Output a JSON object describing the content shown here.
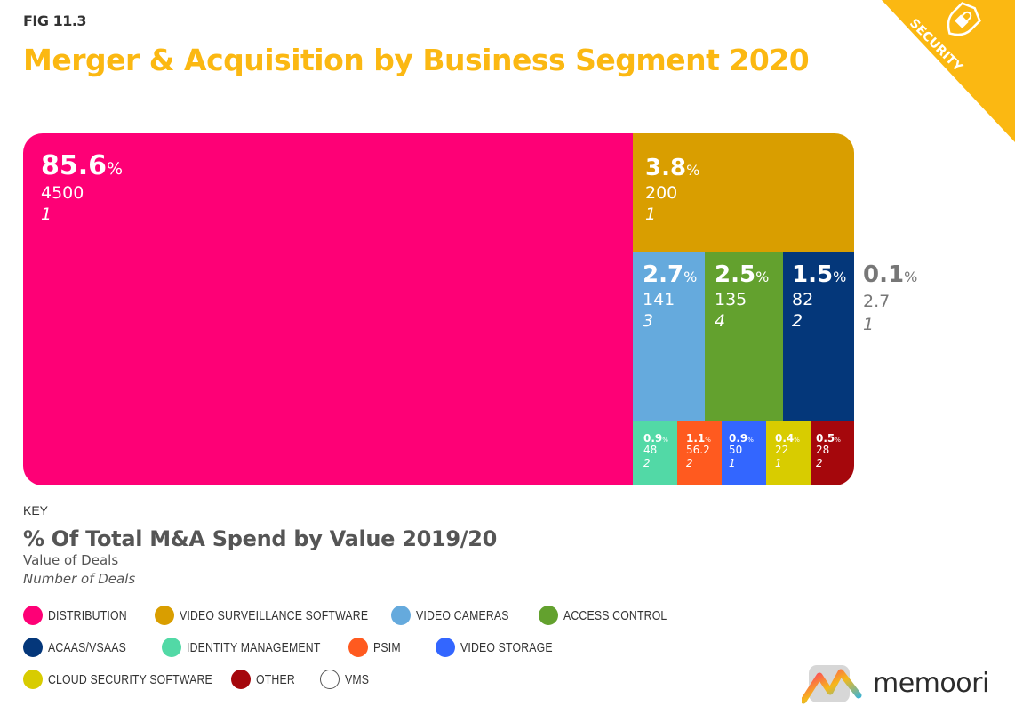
{
  "header": {
    "fig_label": "FIG 11.3",
    "title": "Merger & Acquisition by Business Segment 2020",
    "corner_badge": "SECURITY"
  },
  "colors": {
    "title": "#fbb812",
    "badge": "#fbb812"
  },
  "chart_data": {
    "type": "treemap",
    "title": "Merger & Acquisition by Business Segment 2020",
    "value_meaning": "% Of Total M&A Spend by Value 2019/20",
    "segments": [
      {
        "key": "distribution",
        "name": "DISTRIBUTION",
        "pct": "85.6",
        "value": "4500",
        "deals": "1",
        "color": "#fe0076"
      },
      {
        "key": "vss",
        "name": "VIDEO SURVEILLANCE SOFTWARE",
        "pct": "3.8",
        "value": "200",
        "deals": "1",
        "color": "#d99e00"
      },
      {
        "key": "cameras",
        "name": "VIDEO CAMERAS",
        "pct": "2.7",
        "value": "141",
        "deals": "3",
        "color": "#65aadd"
      },
      {
        "key": "access",
        "name": "ACCESS CONTROL",
        "pct": "2.5",
        "value": "135",
        "deals": "4",
        "color": "#63a12e"
      },
      {
        "key": "acaas",
        "name": "ACAAS/VSAAS",
        "pct": "1.5",
        "value": "82",
        "deals": "2",
        "color": "#04377a"
      },
      {
        "key": "vms",
        "name": "VMS",
        "pct": "0.1",
        "value": "2.7",
        "deals": "1",
        "color": "#ffffff"
      },
      {
        "key": "identity",
        "name": "IDENTITY MANAGEMENT",
        "pct": "0.9",
        "value": "48",
        "deals": "2",
        "color": "#52d9a6"
      },
      {
        "key": "psim",
        "name": "PSIM",
        "pct": "1.1",
        "value": "56.2",
        "deals": "2",
        "color": "#ff5a1f"
      },
      {
        "key": "storage",
        "name": "VIDEO STORAGE",
        "pct": "0.9",
        "value": "50",
        "deals": "1",
        "color": "#3366ff"
      },
      {
        "key": "cloud",
        "name": "CLOUD SECURITY SOFTWARE",
        "pct": "0.4",
        "value": "22",
        "deals": "1",
        "color": "#d8cc00"
      },
      {
        "key": "other",
        "name": "OTHER",
        "pct": "0.5",
        "value": "28",
        "deals": "2",
        "color": "#a5070c"
      }
    ],
    "percent_sign": "%"
  },
  "key": {
    "label": "KEY",
    "title": "% Of Total M&A Spend by Value 2019/20",
    "sub1": "Value of Deals",
    "sub2": "Number of Deals"
  },
  "legend": [
    {
      "label": "DISTRIBUTION",
      "color": "#fe0076"
    },
    {
      "label": "VIDEO SURVEILLANCE SOFTWARE",
      "color": "#d99e00"
    },
    {
      "label": "VIDEO CAMERAS",
      "color": "#65aadd"
    },
    {
      "label": "ACCESS CONTROL",
      "color": "#63a12e"
    },
    {
      "label": "ACAAS/VSAAS",
      "color": "#04377a"
    },
    {
      "label": "IDENTITY MANAGEMENT",
      "color": "#52d9a6"
    },
    {
      "label": "PSIM",
      "color": "#ff5a1f"
    },
    {
      "label": "VIDEO STORAGE",
      "color": "#3366ff"
    },
    {
      "label": "CLOUD SECURITY SOFTWARE",
      "color": "#d8cc00"
    },
    {
      "label": "OTHER",
      "color": "#a5070c"
    },
    {
      "label": "VMS",
      "color": "#ffffff"
    }
  ],
  "logo": {
    "text": "memoori"
  }
}
